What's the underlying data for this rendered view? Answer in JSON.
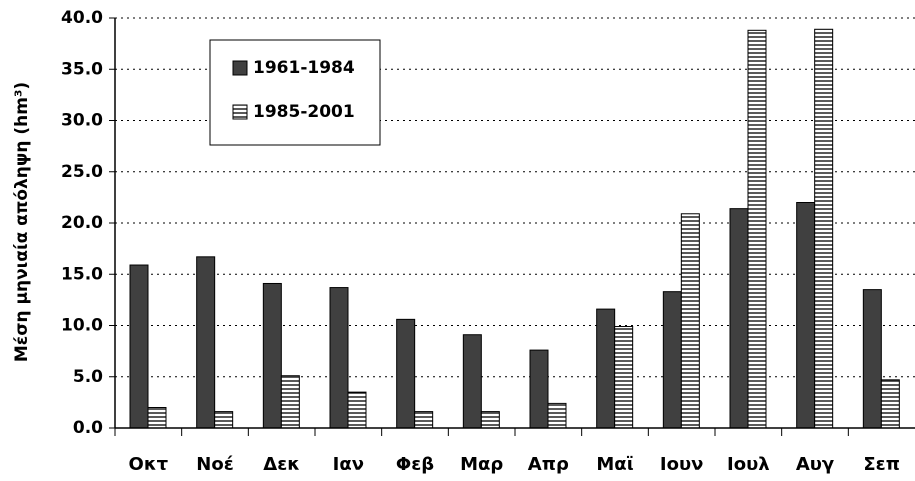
{
  "chart_data": {
    "type": "bar",
    "y_axis_label": "Μέση μηνιαία απόληψη (hm³)",
    "categories": [
      "Οκτ",
      "Νοέ",
      "Δεκ",
      "Ιαν",
      "Φεβ",
      "Μαρ",
      "Απρ",
      "Μαϊ",
      "Ιουν",
      "Ιουλ",
      "Αυγ",
      "Σεπ"
    ],
    "series": [
      {
        "name": "1961-1984",
        "color": "#404040",
        "pattern": "solid",
        "values": [
          15.9,
          16.7,
          14.1,
          13.7,
          10.6,
          9.1,
          7.6,
          11.6,
          13.3,
          21.4,
          22.0,
          13.5
        ]
      },
      {
        "name": "1985-2001",
        "color": "#000000",
        "pattern": "horizontal-stripes",
        "values": [
          2.0,
          1.6,
          5.1,
          3.5,
          1.6,
          1.6,
          2.4,
          9.9,
          20.9,
          38.8,
          38.9,
          4.7
        ]
      }
    ],
    "ylim": [
      0,
      40
    ],
    "yticks": [
      {
        "value": 0,
        "label": "0.0"
      },
      {
        "value": 5,
        "label": "5.0"
      },
      {
        "value": 10,
        "label": "10.0"
      },
      {
        "value": 15,
        "label": "15.0"
      },
      {
        "value": 20,
        "label": "20.0"
      },
      {
        "value": 25,
        "label": "25.0"
      },
      {
        "value": 30,
        "label": "30.0"
      },
      {
        "value": 35,
        "label": "35.0"
      },
      {
        "value": 40,
        "label": "40.0"
      }
    ],
    "grid": true,
    "legend": "upper left"
  }
}
